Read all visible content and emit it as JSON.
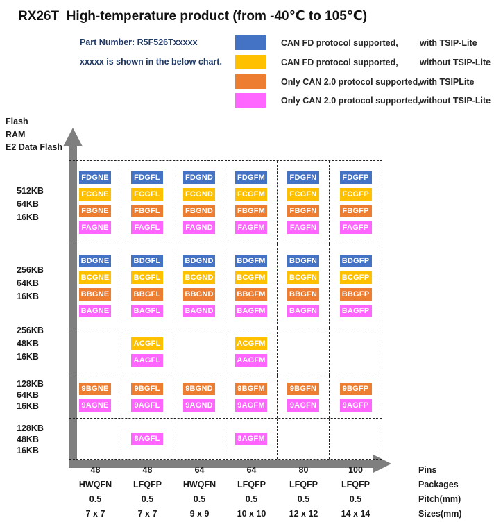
{
  "title": "RX26T  High-temperature product (from -40℃ to 105℃)",
  "header": {
    "part_number": "Part Number: R5F526Txxxxx",
    "note": "xxxxx is shown in the below chart."
  },
  "legend": [
    {
      "color_key": "blue",
      "color": "#4472C4",
      "left": "CAN FD protocol supported,",
      "right": "with TSIP-Lite"
    },
    {
      "color_key": "yellow",
      "color": "#FFC000",
      "left": "CAN FD protocol supported,",
      "right": "without TSIP-Lite"
    },
    {
      "color_key": "orange",
      "color": "#ED7D31",
      "left": "Only CAN 2.0 protocol supported,",
      "right": "with TSIPLite"
    },
    {
      "color_key": "magenta",
      "color": "#FF66FF",
      "left": "Only CAN 2.0 protocol supported,",
      "right": "without TSIP-Lite"
    }
  ],
  "colors": {
    "blue": "#4472C4",
    "yellow": "#FFC000",
    "orange": "#ED7D31",
    "magenta": "#FF66FF",
    "arrow": "#7F7F7F"
  },
  "y_axis": {
    "header": [
      "Flash",
      "RAM",
      "E2 Data Flash"
    ]
  },
  "grid": {
    "groups": [
      {
        "memory": [
          "512KB",
          "64KB",
          "16KB"
        ],
        "rows": [
          {
            "color": "blue",
            "cells": [
              "FDGNE",
              "FDGFL",
              "FDGND",
              "FDGFM",
              "FDGFN",
              "FDGFP"
            ]
          },
          {
            "color": "yellow",
            "cells": [
              "FCGNE",
              "FCGFL",
              "FCGND",
              "FCGFM",
              "FCGFN",
              "FCGFP"
            ]
          },
          {
            "color": "orange",
            "cells": [
              "FBGNE",
              "FBGFL",
              "FBGND",
              "FBGFM",
              "FBGFN",
              "FBGFP"
            ]
          },
          {
            "color": "magenta",
            "cells": [
              "FAGNE",
              "FAGFL",
              "FAGND",
              "FAGFM",
              "FAGFN",
              "FAGFP"
            ]
          }
        ]
      },
      {
        "memory": [
          "256KB",
          "64KB",
          "16KB"
        ],
        "rows": [
          {
            "color": "blue",
            "cells": [
              "BDGNE",
              "BDGFL",
              "BDGND",
              "BDGFM",
              "BDGFN",
              "BDGFP"
            ]
          },
          {
            "color": "yellow",
            "cells": [
              "BCGNE",
              "BCGFL",
              "BCGND",
              "BCGFM",
              "BCGFN",
              "BCGFP"
            ]
          },
          {
            "color": "orange",
            "cells": [
              "BBGNE",
              "BBGFL",
              "BBGND",
              "BBGFM",
              "BBGFN",
              "BBGFP"
            ]
          },
          {
            "color": "magenta",
            "cells": [
              "BAGNE",
              "BAGFL",
              "BAGND",
              "BAGFM",
              "BAGFN",
              "BAGFP"
            ]
          }
        ]
      },
      {
        "memory": [
          "256KB",
          "48KB",
          "16KB"
        ],
        "rows": [
          {
            "color": "yellow",
            "cells": [
              "",
              "ACGFL",
              "",
              "ACGFM",
              "",
              ""
            ]
          },
          {
            "color": "magenta",
            "cells": [
              "",
              "AAGFL",
              "",
              "AAGFM",
              "",
              ""
            ]
          }
        ]
      },
      {
        "memory": [
          "128KB",
          "64KB",
          "16KB"
        ],
        "rows": [
          {
            "color": "orange",
            "cells": [
              "9BGNE",
              "9BGFL",
              "9BGND",
              "9BGFM",
              "9BGFN",
              "9BGFP"
            ]
          },
          {
            "color": "magenta",
            "cells": [
              "9AGNE",
              "9AGFL",
              "9AGND",
              "9AGFM",
              "9AGFN",
              "9AGFP"
            ]
          }
        ]
      },
      {
        "memory": [
          "128KB",
          "48KB",
          "16KB"
        ],
        "rows": [
          {
            "color": "magenta",
            "cells": [
              "",
              "8AGFL",
              "",
              "8AGFM",
              "",
              ""
            ]
          }
        ]
      }
    ]
  },
  "x_axis": {
    "rows": [
      {
        "label": "Pins",
        "values": [
          "48",
          "48",
          "64",
          "64",
          "80",
          "100"
        ]
      },
      {
        "label": "Packages",
        "values": [
          "HWQFN",
          "LFQFP",
          "HWQFN",
          "LFQFP",
          "LFQFP",
          "LFQFP"
        ]
      },
      {
        "label": "Pitch(mm)",
        "values": [
          "0.5",
          "0.5",
          "0.5",
          "0.5",
          "0.5",
          "0.5"
        ]
      },
      {
        "label": "Sizes(mm)",
        "values": [
          "7 x 7",
          "7 x 7",
          "9 x 9",
          "10 x 10",
          "12 x 12",
          "14 x 14"
        ]
      }
    ]
  }
}
